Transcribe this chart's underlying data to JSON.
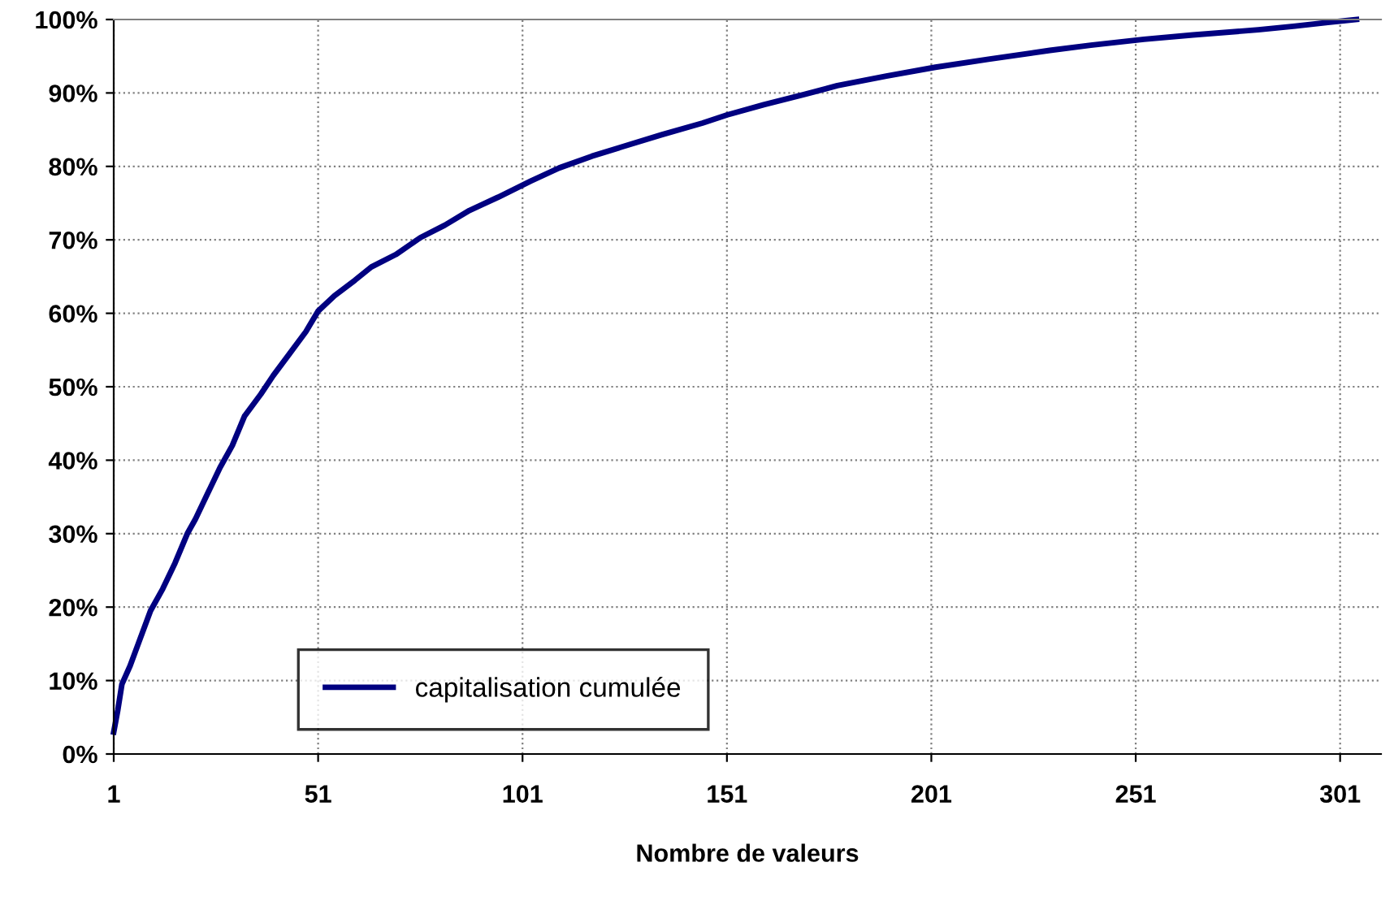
{
  "chart_data": {
    "type": "line",
    "xlabel": "Nombre de valeurs",
    "x": [
      1,
      2,
      3,
      5,
      7,
      10,
      13,
      16,
      19,
      21,
      24,
      27,
      30,
      33,
      37,
      40,
      44,
      48,
      51,
      55,
      60,
      64,
      70,
      76,
      82,
      88,
      95,
      103,
      110,
      118,
      125,
      135,
      145,
      151,
      160,
      170,
      178,
      190,
      202,
      215,
      230,
      240,
      253,
      265,
      281,
      290,
      298,
      305
    ],
    "series": [
      {
        "name": "capitalisation cumulée",
        "color": "#000080",
        "values": [
          3,
          6,
          9.5,
          12,
          15,
          19.5,
          22.5,
          26,
          30,
          32,
          35.5,
          39,
          42,
          46,
          49,
          51.5,
          54.5,
          57.5,
          60.3,
          62.4,
          64.5,
          66.3,
          68,
          70.3,
          72,
          74,
          75.8,
          78,
          79.8,
          81.4,
          82.6,
          84.3,
          85.9,
          87,
          88.4,
          89.8,
          91,
          92.3,
          93.5,
          94.6,
          95.8,
          96.5,
          97.3,
          97.9,
          98.6,
          99.1,
          99.6,
          100
        ]
      }
    ],
    "xlim": [
      1,
      311
    ],
    "xticks": [
      1,
      51,
      101,
      151,
      201,
      251,
      301
    ],
    "ylim": [
      0,
      100
    ],
    "yticks": [
      {
        "value": 0,
        "label": "0%"
      },
      {
        "value": 10,
        "label": "10%"
      },
      {
        "value": 20,
        "label": "20%"
      },
      {
        "value": 30,
        "label": "30%"
      },
      {
        "value": 40,
        "label": "40%"
      },
      {
        "value": 50,
        "label": "50%"
      },
      {
        "value": 60,
        "label": "60%"
      },
      {
        "value": 70,
        "label": "70%"
      },
      {
        "value": 80,
        "label": "80%"
      },
      {
        "value": 90,
        "label": "90%"
      },
      {
        "value": 100,
        "label": "100%"
      }
    ],
    "grid": true,
    "legend": "bottom left",
    "marker": "none",
    "line_style": "solid"
  }
}
